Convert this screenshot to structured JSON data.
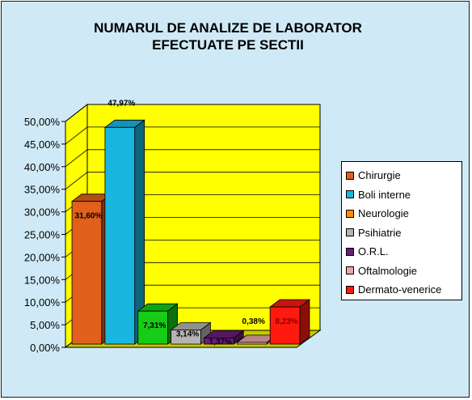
{
  "chart_data": {
    "type": "bar",
    "title_lines": [
      "NUMARUL DE ANALIZE DE LABORATOR",
      "EFECTUATE PE SECTII"
    ],
    "y_ticks": [
      "0,00%",
      "5,00%",
      "10,00%",
      "15,00%",
      "20,00%",
      "25,00%",
      "30,00%",
      "35,00%",
      "40,00%",
      "45,00%",
      "50,00%"
    ],
    "ylim": [
      0,
      50
    ],
    "grid": true,
    "legend_position": "right",
    "series": [
      {
        "name": "Chirurgie",
        "value": 31.6,
        "label": "31,60%",
        "color": "#e0601c"
      },
      {
        "name": "Boli interne",
        "value": 47.97,
        "label": "47,97%",
        "color": "#1ab6e2"
      },
      {
        "name": "Neurologie",
        "value": 7.31,
        "label": "7,31%",
        "color": "#16cc16"
      },
      {
        "name": "Psihiatrie",
        "value": 3.14,
        "label": "3,14%",
        "color": "#b4b4b4"
      },
      {
        "name": "O.R.L.",
        "value": 1.37,
        "label": "1,37%",
        "color": "#6a1d7a"
      },
      {
        "name": "Oftalmologie",
        "value": 0.38,
        "label": "0,38%",
        "color": "#e9a6a6"
      },
      {
        "name": "Dermato-venerice",
        "value": 8.23,
        "label": "8,23%",
        "color": "#ff1a10"
      }
    ],
    "colors": {
      "wall": "#ffff00",
      "floor": "#c8c800",
      "background": "#cfeaf6"
    },
    "legend_swatch_colors": [
      "#e0601c",
      "#1ab6e2",
      "#ff8c00",
      "#b4b4b4",
      "#6a1d7a",
      "#e9a6a6",
      "#ff1a10"
    ]
  }
}
